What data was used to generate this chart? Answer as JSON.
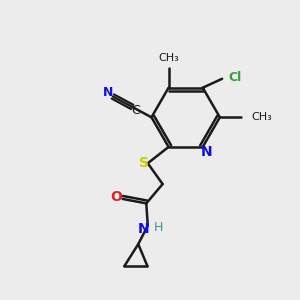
{
  "bg_color": "#ececec",
  "bond_color": "#1a1a1a",
  "bond_width": 1.8,
  "figsize": [
    3.0,
    3.0
  ],
  "dpi": 100,
  "xlim": [
    0,
    10
  ],
  "ylim": [
    0,
    10
  ]
}
